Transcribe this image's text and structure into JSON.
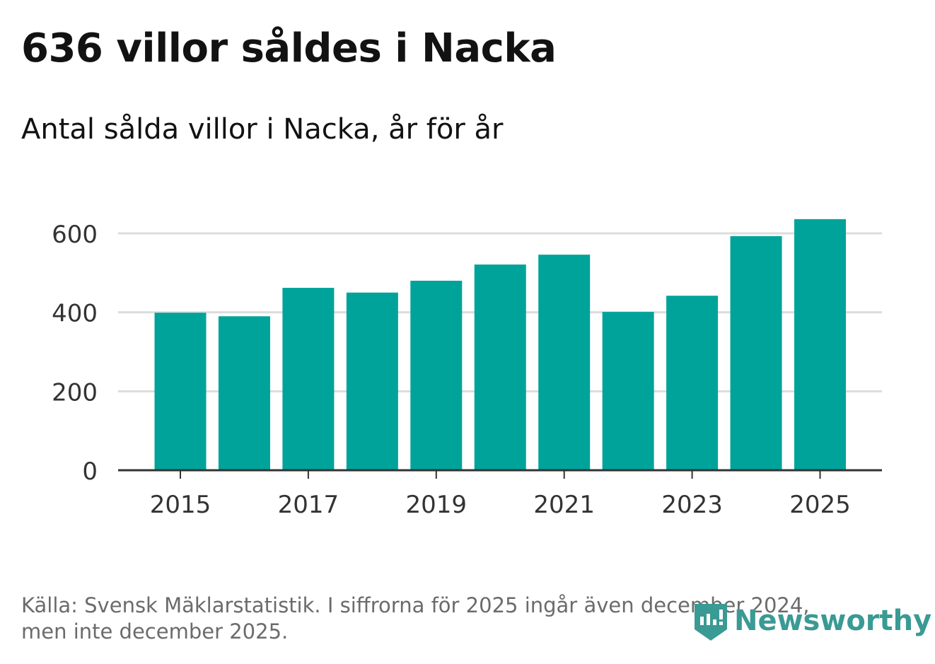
{
  "header": {
    "title": "636 villor såldes i Nacka",
    "subtitle": "Antal sålda villor i Nacka, år för år"
  },
  "footer": {
    "line1": "Källa: Svensk Mäklarstatistik. I siffrorna för 2025 ingår även december 2024,",
    "line2": "men inte december 2025."
  },
  "logo": {
    "text": "Newsworthy",
    "color": "#3a9a94"
  },
  "chart_data": {
    "type": "bar",
    "title": "Antal sålda villor i Nacka, år för år",
    "xlabel": "",
    "ylabel": "",
    "categories": [
      "2015",
      "2016",
      "2017",
      "2018",
      "2019",
      "2020",
      "2021",
      "2022",
      "2023",
      "2024",
      "2025"
    ],
    "values": [
      399,
      390,
      462,
      450,
      480,
      521,
      546,
      401,
      442,
      593,
      636
    ],
    "ylim": [
      0,
      640
    ],
    "yticks": [
      0,
      200,
      400,
      600
    ],
    "xtick_labels": [
      "2015",
      "2017",
      "2019",
      "2021",
      "2023",
      "2025"
    ],
    "grid": true,
    "bar_color": "#00a39a"
  }
}
